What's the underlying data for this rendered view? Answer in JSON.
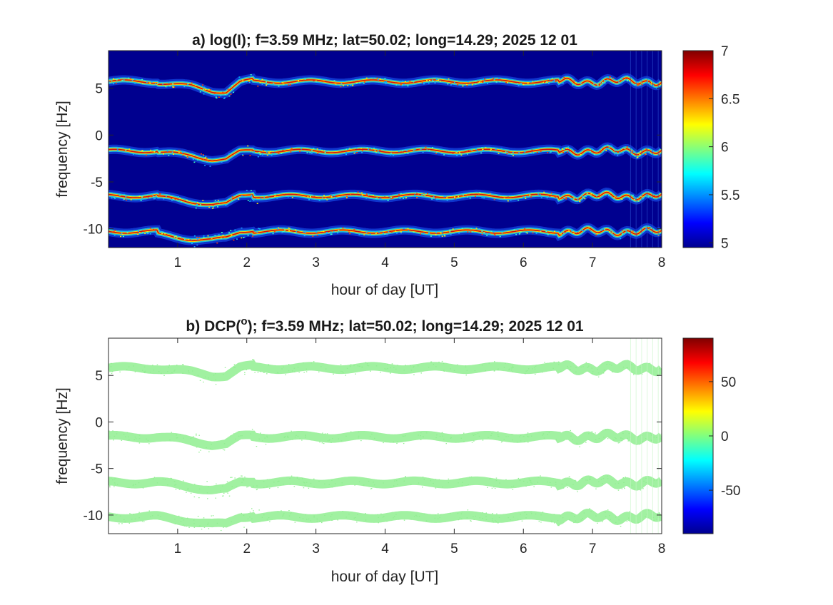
{
  "chart_data": [
    {
      "type": "heatmap",
      "title": "a) log(I); f=3.59 MHz;  lat=50.02; long=14.29; 2025 12 01",
      "xlabel": "hour of day [UT]",
      "ylabel": "frequency [Hz]",
      "xlim": [
        0,
        8
      ],
      "ylim": [
        -12,
        9
      ],
      "xticks": [
        1,
        2,
        3,
        4,
        5,
        6,
        7,
        8
      ],
      "yticks": [
        5,
        0,
        -5,
        -10
      ],
      "colormap": "jet",
      "background_color": "#00008f",
      "colorbar": {
        "range": [
          4.95,
          7
        ],
        "ticks": [
          7,
          6.5,
          6,
          5.5,
          5
        ]
      },
      "bands": [
        {
          "name": "band-1",
          "baseline_hz": 5.7,
          "dip": [
            [
              0.7,
              5.6
            ],
            [
              1.2,
              5.2
            ],
            [
              1.5,
              4.7
            ],
            [
              1.7,
              4.6
            ],
            [
              1.9,
              5.6
            ],
            [
              2.1,
              5.9
            ]
          ]
        },
        {
          "name": "band-2",
          "baseline_hz": -1.7,
          "dip": [
            [
              0.7,
              -1.8
            ],
            [
              1.2,
              -2.2
            ],
            [
              1.5,
              -2.6
            ],
            [
              1.7,
              -2.6
            ],
            [
              1.9,
              -1.8
            ],
            [
              2.1,
              -1.6
            ]
          ]
        },
        {
          "name": "band-3",
          "baseline_hz": -6.5,
          "dip": [
            [
              0.7,
              -6.6
            ],
            [
              1.2,
              -7.1
            ],
            [
              1.5,
              -7.4
            ],
            [
              1.7,
              -7.4
            ],
            [
              1.9,
              -6.5
            ],
            [
              2.1,
              -6.2
            ]
          ]
        },
        {
          "name": "band-4",
          "baseline_hz": -10.3,
          "dip": [
            [
              0.7,
              -10.6
            ],
            [
              1.2,
              -11.1
            ],
            [
              1.5,
              -11.2
            ],
            [
              1.7,
              -11.0
            ],
            [
              1.9,
              -10.3
            ],
            [
              2.1,
              -10.1
            ]
          ]
        }
      ]
    },
    {
      "type": "heatmap",
      "title": "b) DCP(",
      "title_superscript": "o",
      "title_rest": "); f=3.59 MHz;  lat=50.02; long=14.29; 2025 12 01",
      "xlabel": "hour of day [UT]",
      "ylabel": "frequency [Hz]",
      "xlim": [
        0,
        8
      ],
      "ylim": [
        -12,
        9
      ],
      "xticks": [
        1,
        2,
        3,
        4,
        5,
        6,
        7,
        8
      ],
      "yticks": [
        5,
        0,
        -5,
        -10
      ],
      "colormap": "jet",
      "background_color": "#ffffff",
      "band_color": "#90ee90",
      "colorbar": {
        "range": [
          -90,
          90
        ],
        "ticks": [
          50,
          0,
          -50
        ]
      },
      "bands": [
        {
          "name": "band-1",
          "baseline_hz": 5.8
        },
        {
          "name": "band-2",
          "baseline_hz": -1.6
        },
        {
          "name": "band-3",
          "baseline_hz": -6.5
        },
        {
          "name": "band-4",
          "baseline_hz": -10.2
        }
      ]
    }
  ]
}
